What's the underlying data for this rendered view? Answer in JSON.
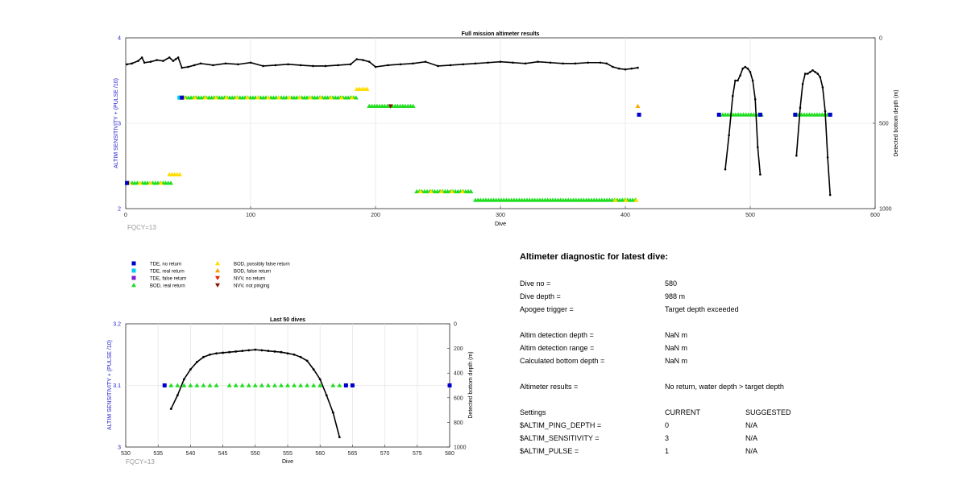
{
  "top_chart": {
    "title": "Full mission altimeter results",
    "xlabel": "Dive",
    "ylabel": "ALTIM SENSITIVITY + (PULSE /10)",
    "ylabel2": "Detected bottom depth (m)",
    "fqcy": "FQCY=13",
    "xlim": [
      0,
      600
    ],
    "ylim": [
      2,
      4
    ],
    "y2lim": [
      0,
      1000
    ],
    "xticks": [
      "0",
      "100",
      "200",
      "300",
      "400",
      "500",
      "600"
    ],
    "yticks": [
      "2",
      "3",
      "4"
    ],
    "y2ticks": [
      "0",
      "500",
      "1000"
    ]
  },
  "bottom_chart": {
    "title": "Last 50 dives",
    "xlabel": "Dive",
    "ylabel": "ALTIM SENSITIVITY + (PULSE /10)",
    "ylabel2": "Detected bottom depth (m)",
    "fqcy": "FQCY=13",
    "xlim": [
      530,
      580
    ],
    "ylim": [
      3,
      3.2
    ],
    "y2lim": [
      0,
      1000
    ],
    "xticks": [
      "530",
      "535",
      "540",
      "545",
      "550",
      "555",
      "560",
      "565",
      "570",
      "575",
      "580"
    ],
    "yticks": [
      "3.1",
      "3.2"
    ],
    "y2ticks": [
      "0",
      "200",
      "400",
      "600",
      "800",
      "1000"
    ]
  },
  "legend": [
    {
      "label": "TDE, no return",
      "marker": "square",
      "color": "#0000cc"
    },
    {
      "label": "TDE, real return",
      "marker": "square",
      "color": "#00ccee"
    },
    {
      "label": "TDE, false return",
      "marker": "square",
      "color": "#7722cc"
    },
    {
      "label": "BOD, real return",
      "marker": "triangle-up",
      "color": "#22dd22"
    },
    {
      "label": "BOD, possibly false return",
      "marker": "triangle-up",
      "color": "#ffdd00"
    },
    {
      "label": "BOD, false return",
      "marker": "triangle-up",
      "color": "#ff9900"
    },
    {
      "label": "NVV, no return",
      "marker": "triangle-down",
      "color": "#ee2200"
    },
    {
      "label": "NVV, not pinging",
      "marker": "triangle-down",
      "color": "#881100"
    }
  ],
  "chart_data": [
    {
      "type": "scatter",
      "title": "Full mission altimeter results",
      "xlabel": "Dive",
      "ylabel": "ALTIM SENSITIVITY + (PULSE /10)",
      "y2label": "Detected bottom depth (m)",
      "xlim": [
        0,
        600
      ],
      "ylim": [
        2,
        4
      ],
      "y2lim": [
        0,
        1000
      ],
      "grid": true,
      "marker_segments": [
        {
          "x0": 1,
          "x1": 37,
          "y": 2.3,
          "marker": "triangle-up",
          "color": "#22dd22"
        },
        {
          "x0": 35,
          "x1": 45,
          "y": 2.4,
          "marker": "triangle-up",
          "color": "#ffdd00"
        },
        {
          "x0": 44,
          "x1": 185,
          "y": 3.3,
          "marker": "triangle-up",
          "color": "#22dd22"
        },
        {
          "x0": 185,
          "x1": 195,
          "y": 3.4,
          "marker": "triangle-up",
          "color": "#ffdd00"
        },
        {
          "x0": 195,
          "x1": 232,
          "y": 3.2,
          "marker": "triangle-up",
          "color": "#22dd22"
        },
        {
          "x0": 233,
          "x1": 278,
          "y": 2.2,
          "marker": "triangle-up",
          "color": "#22dd22"
        },
        {
          "x0": 280,
          "x1": 410,
          "y": 2.1,
          "marker": "triangle-up",
          "color": "#22dd22"
        },
        {
          "x0": 478,
          "x1": 510,
          "y": 3.1,
          "marker": "triangle-up",
          "color": "#22dd22"
        },
        {
          "x0": 537,
          "x1": 563,
          "y": 3.1,
          "marker": "triangle-up",
          "color": "#22dd22"
        }
      ],
      "yellow_overlays": [
        {
          "x0": 3,
          "x1": 36,
          "y": 2.3
        },
        {
          "x0": 47,
          "x1": 183,
          "y": 3.3
        },
        {
          "x0": 236,
          "x1": 272,
          "y": 2.2
        },
        {
          "x0": 392,
          "x1": 410,
          "y": 2.1
        }
      ],
      "points": [
        {
          "x": 1,
          "y": 2.3,
          "marker": "square",
          "color": "#0000cc"
        },
        {
          "x": 43,
          "y": 3.3,
          "marker": "square",
          "color": "#00ccee"
        },
        {
          "x": 45,
          "y": 3.3,
          "marker": "square",
          "color": "#0000cc"
        },
        {
          "x": 212,
          "y": 3.2,
          "marker": "triangle-down",
          "color": "#881100"
        },
        {
          "x": 410,
          "y": 3.2,
          "marker": "triangle-up",
          "color": "#ffaa00"
        },
        {
          "x": 411,
          "y": 3.1,
          "marker": "square",
          "color": "#0000cc"
        },
        {
          "x": 475,
          "y": 3.1,
          "marker": "square",
          "color": "#0000cc"
        },
        {
          "x": 508,
          "y": 3.1,
          "marker": "square",
          "color": "#0000cc"
        },
        {
          "x": 536,
          "y": 3.1,
          "marker": "square",
          "color": "#0000cc"
        },
        {
          "x": 564,
          "y": 3.1,
          "marker": "square",
          "color": "#0000cc"
        }
      ],
      "bottom_depth_series": {
        "axis": "right",
        "x": [
          1,
          5,
          10,
          13,
          15,
          20,
          25,
          30,
          35,
          38,
          40,
          42,
          45,
          50,
          55,
          60,
          70,
          80,
          90,
          100,
          110,
          120,
          130,
          140,
          150,
          160,
          170,
          180,
          185,
          190,
          195,
          200,
          210,
          220,
          230,
          240,
          250,
          260,
          270,
          280,
          290,
          300,
          310,
          320,
          330,
          340,
          350,
          360,
          370,
          380,
          385,
          390,
          395,
          400,
          405,
          410
        ],
        "y": [
          155,
          150,
          135,
          115,
          145,
          140,
          130,
          135,
          115,
          135,
          125,
          115,
          175,
          170,
          160,
          150,
          160,
          150,
          155,
          145,
          165,
          160,
          155,
          160,
          165,
          165,
          160,
          155,
          125,
          130,
          140,
          170,
          160,
          155,
          150,
          140,
          165,
          160,
          155,
          150,
          145,
          140,
          145,
          150,
          140,
          145,
          150,
          150,
          145,
          145,
          150,
          170,
          180,
          185,
          180,
          175
        ]
      },
      "dive_profiles": [
        {
          "axis": "right",
          "x": [
            480,
            483,
            486,
            488,
            490,
            492,
            494,
            496,
            498,
            500,
            502,
            504,
            506,
            508
          ],
          "y": [
            770,
            570,
            340,
            250,
            250,
            220,
            180,
            170,
            180,
            200,
            250,
            360,
            640,
            800
          ]
        },
        {
          "axis": "right",
          "x": [
            537,
            540,
            542,
            544,
            546,
            548,
            550,
            552,
            554,
            556,
            558,
            560,
            562,
            564
          ],
          "y": [
            690,
            410,
            270,
            210,
            210,
            200,
            190,
            200,
            210,
            230,
            290,
            430,
            700,
            920
          ]
        }
      ]
    },
    {
      "type": "scatter",
      "title": "Last 50 dives",
      "xlabel": "Dive",
      "ylabel": "ALTIM SENSITIVITY + (PULSE /10)",
      "y2label": "Detected bottom depth (m)",
      "xlim": [
        530,
        580
      ],
      "ylim": [
        3,
        3.2
      ],
      "y2lim": [
        0,
        1000
      ],
      "grid": true,
      "points": [
        {
          "x": 536,
          "y": 3.1,
          "marker": "square",
          "color": "#0000cc"
        },
        {
          "x": 537,
          "y": 3.1,
          "marker": "triangle-up",
          "color": "#22dd22"
        },
        {
          "x": 538,
          "y": 3.1,
          "marker": "triangle-up",
          "color": "#22dd22"
        },
        {
          "x": 539,
          "y": 3.1,
          "marker": "triangle-up",
          "color": "#22dd22"
        },
        {
          "x": 540,
          "y": 3.1,
          "marker": "triangle-up",
          "color": "#22dd22"
        },
        {
          "x": 541,
          "y": 3.1,
          "marker": "triangle-up",
          "color": "#22dd22"
        },
        {
          "x": 542,
          "y": 3.1,
          "marker": "triangle-up",
          "color": "#22dd22"
        },
        {
          "x": 543,
          "y": 3.1,
          "marker": "triangle-up",
          "color": "#22dd22"
        },
        {
          "x": 544,
          "y": 3.1,
          "marker": "triangle-up",
          "color": "#22dd22"
        },
        {
          "x": 546,
          "y": 3.1,
          "marker": "triangle-up",
          "color": "#22dd22"
        },
        {
          "x": 547,
          "y": 3.1,
          "marker": "triangle-up",
          "color": "#22dd22"
        },
        {
          "x": 548,
          "y": 3.1,
          "marker": "triangle-up",
          "color": "#22dd22"
        },
        {
          "x": 549,
          "y": 3.1,
          "marker": "triangle-up",
          "color": "#22dd22"
        },
        {
          "x": 550,
          "y": 3.1,
          "marker": "triangle-up",
          "color": "#22dd22"
        },
        {
          "x": 551,
          "y": 3.1,
          "marker": "triangle-up",
          "color": "#22dd22"
        },
        {
          "x": 552,
          "y": 3.1,
          "marker": "triangle-up",
          "color": "#22dd22"
        },
        {
          "x": 553,
          "y": 3.1,
          "marker": "triangle-up",
          "color": "#22dd22"
        },
        {
          "x": 554,
          "y": 3.1,
          "marker": "triangle-up",
          "color": "#22dd22"
        },
        {
          "x": 555,
          "y": 3.1,
          "marker": "triangle-up",
          "color": "#22dd22"
        },
        {
          "x": 556,
          "y": 3.1,
          "marker": "triangle-up",
          "color": "#22dd22"
        },
        {
          "x": 557,
          "y": 3.1,
          "marker": "triangle-up",
          "color": "#22dd22"
        },
        {
          "x": 558,
          "y": 3.1,
          "marker": "triangle-up",
          "color": "#22dd22"
        },
        {
          "x": 559,
          "y": 3.1,
          "marker": "triangle-up",
          "color": "#22dd22"
        },
        {
          "x": 560,
          "y": 3.1,
          "marker": "triangle-up",
          "color": "#22dd22"
        },
        {
          "x": 562,
          "y": 3.1,
          "marker": "triangle-up",
          "color": "#22dd22"
        },
        {
          "x": 563,
          "y": 3.1,
          "marker": "triangle-up",
          "color": "#22dd22"
        },
        {
          "x": 564,
          "y": 3.1,
          "marker": "square",
          "color": "#0000cc"
        },
        {
          "x": 565,
          "y": 3.1,
          "marker": "square",
          "color": "#0000cc"
        },
        {
          "x": 580,
          "y": 3.1,
          "marker": "square",
          "color": "#0000cc"
        }
      ],
      "bottom_depth_series": {
        "axis": "right",
        "x": [
          537,
          538,
          539,
          540,
          541,
          542,
          543,
          544,
          545,
          546,
          547,
          548,
          549,
          550,
          551,
          552,
          553,
          554,
          555,
          556,
          557,
          558,
          559,
          560,
          561,
          562,
          563
        ],
        "y": [
          690,
          580,
          450,
          370,
          310,
          270,
          250,
          240,
          235,
          230,
          225,
          220,
          215,
          210,
          215,
          220,
          225,
          230,
          240,
          250,
          270,
          300,
          370,
          450,
          580,
          720,
          920
        ]
      }
    }
  ],
  "diagnostic": {
    "title": "Altimeter diagnostic for latest dive:",
    "rows": [
      {
        "label": "Dive no =",
        "value": "580"
      },
      {
        "label": "Dive depth =",
        "value": "988 m"
      },
      {
        "label": "Apogee trigger =",
        "value": "Target depth exceeded"
      },
      {
        "label": "Altim detection depth =",
        "value": "NaN m"
      },
      {
        "label": "Altim detection range =",
        "value": "NaN m"
      },
      {
        "label": "Calculated bottom depth =",
        "value": "NaN m"
      },
      {
        "label": "Altimeter results =",
        "value": "No return, water depth > target depth"
      }
    ],
    "settings_header": {
      "label": "Settings",
      "current": "CURRENT",
      "suggested": "SUGGESTED"
    },
    "settings": [
      {
        "label": "$ALTIM_PING_DEPTH =",
        "current": "0",
        "suggested": "N/A"
      },
      {
        "label": "$ALTIM_SENSITIVITY =",
        "current": "3",
        "suggested": "N/A"
      },
      {
        "label": "$ALTIM_PULSE =",
        "current": "1",
        "suggested": "N/A"
      }
    ]
  }
}
